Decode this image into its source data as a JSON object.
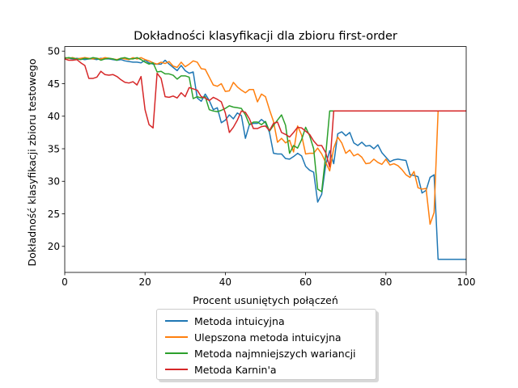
{
  "chart_data": {
    "type": "line",
    "title": "Dokładności klasyfikacji dla zbioru first-order",
    "xlabel": "Procent usuniętych połączeń",
    "ylabel": "Dokładność klasyfikacji zbioru testowego",
    "xlim": [
      0,
      100
    ],
    "ylim": [
      16,
      50.7
    ],
    "xticks": [
      0,
      20,
      40,
      60,
      80,
      100
    ],
    "yticks": [
      20,
      25,
      30,
      35,
      40,
      45,
      50
    ],
    "grid": false,
    "legend_position": "below",
    "series": [
      {
        "name": "Metoda intuicyjna",
        "color": "#1f77b4",
        "x": [
          0,
          1,
          2,
          3,
          4,
          5,
          6,
          7,
          8,
          9,
          10,
          11,
          12,
          13,
          14,
          15,
          16,
          17,
          18,
          19,
          20,
          21,
          22,
          23,
          24,
          25,
          26,
          27,
          28,
          29,
          30,
          31,
          32,
          33,
          34,
          35,
          36,
          37,
          38,
          39,
          40,
          41,
          42,
          43,
          44,
          45,
          46,
          47,
          48,
          49,
          50,
          51,
          52,
          53,
          54,
          55,
          56,
          57,
          58,
          59,
          60,
          61,
          62,
          63,
          64,
          65,
          66,
          67,
          68,
          69,
          70,
          71,
          72,
          73,
          74,
          75,
          76,
          77,
          78,
          79,
          80,
          81,
          82,
          83,
          84,
          85,
          86,
          87,
          88,
          89,
          90,
          91,
          92,
          93,
          94,
          95,
          96,
          97,
          98,
          99,
          100
        ],
        "y": [
          49.0,
          48.9,
          48.8,
          48.9,
          48.8,
          48.7,
          48.8,
          48.8,
          48.7,
          48.9,
          48.8,
          48.8,
          48.7,
          48.6,
          48.7,
          48.5,
          48.4,
          48.3,
          48.3,
          48.2,
          48.6,
          48.2,
          48.0,
          48.0,
          48.0,
          48.6,
          48.0,
          47.5,
          47.0,
          47.8,
          47.0,
          46.6,
          46.8,
          42.8,
          42.3,
          43.4,
          42.4,
          41.0,
          41.3,
          39.0,
          39.4,
          40.2,
          39.6,
          40.5,
          40.1,
          36.6,
          38.7,
          38.9,
          38.9,
          39.5,
          39.0,
          37.5,
          34.3,
          34.2,
          34.2,
          33.5,
          33.4,
          33.8,
          34.3,
          33.9,
          32.3,
          31.7,
          31.4,
          26.8,
          28.0,
          32.5,
          34.7,
          32.7,
          37.3,
          37.6,
          37.0,
          37.5,
          35.9,
          35.5,
          36.0,
          35.4,
          35.5,
          35.0,
          35.6,
          34.4,
          33.7,
          33.0,
          33.3,
          33.4,
          33.3,
          33.2,
          31.0,
          30.9,
          30.7,
          28.2,
          28.6,
          30.6,
          31.0,
          18.0,
          18.0,
          18.0,
          18.0,
          18.0,
          18.0,
          18.0,
          18.0
        ]
      },
      {
        "name": "Ulepszona metoda intuicyjna",
        "color": "#ff7f0e",
        "x": [
          0,
          1,
          2,
          3,
          4,
          5,
          6,
          7,
          8,
          9,
          10,
          11,
          12,
          13,
          14,
          15,
          16,
          17,
          18,
          19,
          20,
          21,
          22,
          23,
          24,
          25,
          26,
          27,
          28,
          29,
          30,
          31,
          32,
          33,
          34,
          35,
          36,
          37,
          38,
          39,
          40,
          41,
          42,
          43,
          44,
          45,
          46,
          47,
          48,
          49,
          50,
          51,
          52,
          53,
          54,
          55,
          56,
          57,
          58,
          59,
          60,
          61,
          62,
          63,
          64,
          65,
          66,
          67,
          68,
          69,
          70,
          71,
          72,
          73,
          74,
          75,
          76,
          77,
          78,
          79,
          80,
          81,
          82,
          83,
          84,
          85,
          86,
          87,
          88,
          89,
          90,
          91,
          92,
          93,
          94,
          95,
          96,
          97,
          98,
          99,
          100
        ],
        "y": [
          49.0,
          48.9,
          49.0,
          48.8,
          48.9,
          49.0,
          48.9,
          48.8,
          48.9,
          48.8,
          49.0,
          48.9,
          48.8,
          48.7,
          48.9,
          48.8,
          48.7,
          49.0,
          48.8,
          49.0,
          48.7,
          48.5,
          48.2,
          48.0,
          48.3,
          48.1,
          48.4,
          47.7,
          47.5,
          48.3,
          47.6,
          48.0,
          48.5,
          48.3,
          47.3,
          47.2,
          46.0,
          44.8,
          44.6,
          45.0,
          43.8,
          43.9,
          45.2,
          44.5,
          44.0,
          43.6,
          44.1,
          44.1,
          42.2,
          43.4,
          43.0,
          41.0,
          39.2,
          36.0,
          36.6,
          35.9,
          36.3,
          34.5,
          38.5,
          37.1,
          34.2,
          34.3,
          34.3,
          35.1,
          34.2,
          32.9,
          31.6,
          35.1,
          36.8,
          35.9,
          34.3,
          34.8,
          33.9,
          34.2,
          33.7,
          32.7,
          32.8,
          33.4,
          32.9,
          32.6,
          33.4,
          32.5,
          32.7,
          32.4,
          31.8,
          31.0,
          30.6,
          31.5,
          29.0,
          28.8,
          28.9,
          23.4,
          25.2,
          40.8,
          40.8,
          40.8,
          40.8,
          40.8,
          40.8,
          40.8,
          40.8
        ]
      },
      {
        "name": "Metoda najmniejszych wariancji",
        "color": "#2ca02c",
        "x": [
          0,
          1,
          2,
          3,
          4,
          5,
          6,
          7,
          8,
          9,
          10,
          11,
          12,
          13,
          14,
          15,
          16,
          17,
          18,
          19,
          20,
          21,
          22,
          23,
          24,
          25,
          26,
          27,
          28,
          29,
          30,
          31,
          32,
          33,
          34,
          35,
          36,
          37,
          38,
          39,
          40,
          41,
          42,
          43,
          44,
          45,
          46,
          47,
          48,
          49,
          50,
          51,
          52,
          53,
          54,
          55,
          56,
          57,
          58,
          59,
          60,
          61,
          62,
          63,
          64,
          65,
          66,
          67,
          68,
          69,
          70,
          71,
          72,
          73,
          74,
          75,
          76,
          77,
          78,
          79,
          80,
          81,
          82,
          83,
          84,
          85,
          86,
          87,
          88,
          89,
          90,
          91,
          92,
          93,
          94,
          95,
          96,
          97,
          98,
          99,
          100
        ],
        "y": [
          48.9,
          49.0,
          48.9,
          48.8,
          48.7,
          48.9,
          48.8,
          49.0,
          48.9,
          48.6,
          48.8,
          48.9,
          48.8,
          48.6,
          48.9,
          49.0,
          48.8,
          48.8,
          49.0,
          48.7,
          48.3,
          48.0,
          48.2,
          46.8,
          46.9,
          46.5,
          46.5,
          46.3,
          45.7,
          46.2,
          46.2,
          46.0,
          42.7,
          43.0,
          42.8,
          43.0,
          41.0,
          40.8,
          40.7,
          40.9,
          41.2,
          41.6,
          41.4,
          41.3,
          41.2,
          40.2,
          38.7,
          39.1,
          39.1,
          38.7,
          39.2,
          37.7,
          38.6,
          39.4,
          40.2,
          38.6,
          34.3,
          35.5,
          35.1,
          36.4,
          38.3,
          37.0,
          35.0,
          28.8,
          28.4,
          34.0,
          40.8,
          40.8,
          40.8,
          40.8,
          40.8,
          40.8,
          40.8,
          40.8,
          40.8,
          40.8,
          40.8,
          40.8,
          40.8,
          40.8,
          40.8,
          40.8,
          40.8,
          40.8,
          40.8,
          40.8,
          40.8,
          40.8,
          40.8,
          40.8,
          40.8,
          40.8,
          40.8,
          40.8,
          40.8,
          40.8,
          40.8,
          40.8,
          40.8,
          40.8,
          40.8
        ]
      },
      {
        "name": "Metoda Karnin'a",
        "color": "#d62728",
        "x": [
          0,
          1,
          2,
          3,
          4,
          5,
          6,
          7,
          8,
          9,
          10,
          11,
          12,
          13,
          14,
          15,
          16,
          17,
          18,
          19,
          20,
          21,
          22,
          23,
          24,
          25,
          26,
          27,
          28,
          29,
          30,
          31,
          32,
          33,
          34,
          35,
          36,
          37,
          38,
          39,
          40,
          41,
          42,
          43,
          44,
          45,
          46,
          47,
          48,
          49,
          50,
          51,
          52,
          53,
          54,
          55,
          56,
          57,
          58,
          59,
          60,
          61,
          62,
          63,
          64,
          65,
          66,
          67,
          68,
          69,
          70,
          71,
          72,
          73,
          74,
          75,
          76,
          77,
          78,
          79,
          80,
          81,
          82,
          83,
          84,
          85,
          86,
          87,
          88,
          89,
          90,
          91,
          92,
          93,
          94,
          95,
          96,
          97,
          98,
          99,
          100
        ],
        "y": [
          48.8,
          48.6,
          48.6,
          48.7,
          48.2,
          47.8,
          45.8,
          45.8,
          46.0,
          46.9,
          46.4,
          46.3,
          46.4,
          46.1,
          45.6,
          45.2,
          45.1,
          45.3,
          44.8,
          46.1,
          41.0,
          38.7,
          38.2,
          46.6,
          45.8,
          43.0,
          42.9,
          43.1,
          42.8,
          43.6,
          43.0,
          44.4,
          44.2,
          44.0,
          43.0,
          42.8,
          42.4,
          42.9,
          42.6,
          42.2,
          40.5,
          37.5,
          38.3,
          39.4,
          40.8,
          40.6,
          39.6,
          38.1,
          38.1,
          38.4,
          38.5,
          37.8,
          38.9,
          39.1,
          37.5,
          37.2,
          36.8,
          37.5,
          38.3,
          38.2,
          37.7,
          37.2,
          36.2,
          35.5,
          35.5,
          34.4,
          32.2,
          40.8,
          40.8,
          40.8,
          40.8,
          40.8,
          40.8,
          40.8,
          40.8,
          40.8,
          40.8,
          40.8,
          40.8,
          40.8,
          40.8,
          40.8,
          40.8,
          40.8,
          40.8,
          40.8,
          40.8,
          40.8,
          40.8,
          40.8,
          40.8,
          40.8,
          40.8,
          40.8,
          40.8,
          40.8,
          40.8,
          40.8,
          40.8,
          40.8,
          40.8
        ]
      }
    ]
  }
}
